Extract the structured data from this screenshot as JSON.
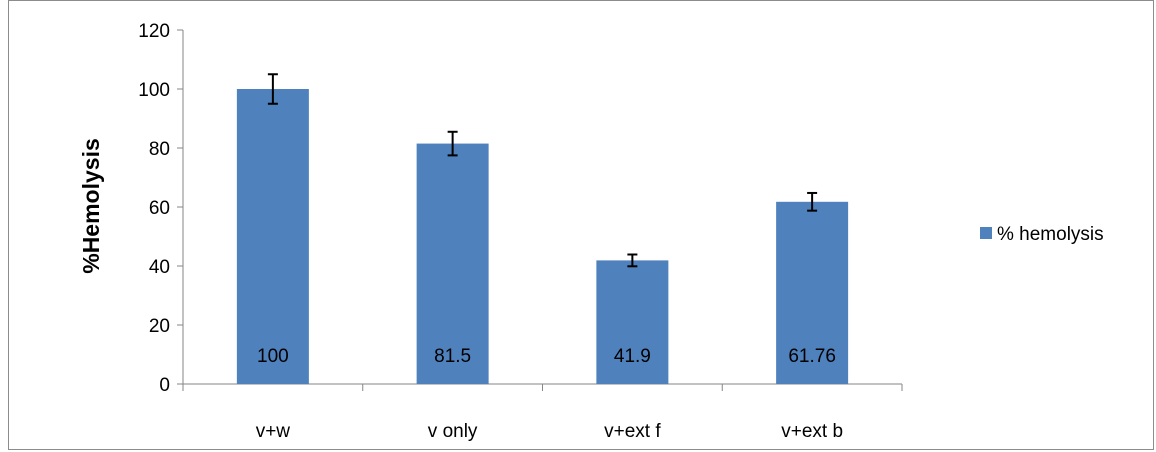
{
  "chart_data": {
    "type": "bar",
    "title": "",
    "xlabel": "",
    "ylabel": "%Hemolysis",
    "categories": [
      "v+w",
      "v only",
      "v+ext f",
      "v+ext b"
    ],
    "series": [
      {
        "name": "% hemolysis",
        "values": [
          100,
          81.5,
          41.9,
          61.76
        ],
        "data_labels": [
          "100",
          "81.5",
          "41.9",
          "61.76"
        ],
        "error": [
          5,
          4,
          2,
          3
        ],
        "color": "#4f81bd"
      }
    ],
    "ylim": [
      0,
      120
    ],
    "yticks": [
      0,
      20,
      40,
      60,
      80,
      100,
      120
    ],
    "ytick_labels": [
      "0",
      "20",
      "40",
      "60",
      "80",
      "100",
      "120"
    ],
    "grid": false,
    "legend": {
      "position": "right",
      "labels": [
        "% hemolysis"
      ]
    },
    "colors": {
      "bar": "#4f81bd",
      "axis": "#868686",
      "error_bar": "#000000"
    }
  }
}
